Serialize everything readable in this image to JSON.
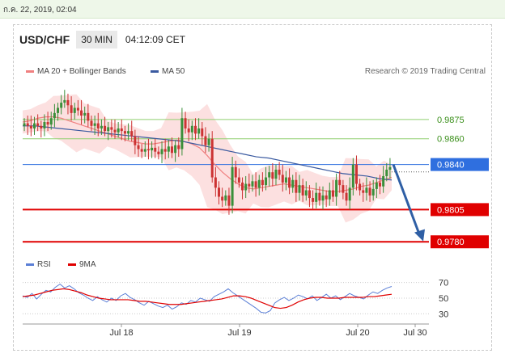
{
  "timestamp": "ก.ค. 22, 2019, 02:04",
  "header": {
    "symbol": "USD/CHF",
    "timeframe": "30 MIN",
    "clock": "04:12:09 CET"
  },
  "legend": {
    "ma20_label": "MA 20 + Bollinger Bands",
    "ma50_label": "MA 50",
    "research": "Research © 2019 Trading Central",
    "rsi_label": "RSI",
    "rsi_ma_label": "9MA"
  },
  "colors": {
    "up": "#3a8f3a",
    "down": "#cc3333",
    "ma20": "#f08080",
    "ma50": "#3a5aa0",
    "band": "#fbd6d6",
    "support": "#e00000",
    "resistance": "#8fcf6f",
    "pivot": "#2f6fdf",
    "arrow": "#2f5fa5"
  },
  "chart_data": {
    "type": "candlestick",
    "y_unit": "USD/CHF",
    "ylim": [
      0.9772,
      0.9905
    ],
    "x_ticks": [
      "Jul 18",
      "Jul 19",
      "Jul 20",
      "Jul 30"
    ],
    "levels": [
      {
        "label": "0.9875",
        "value": 0.9875,
        "kind": "resistance"
      },
      {
        "label": "0.9860",
        "value": 0.986,
        "kind": "resistance"
      },
      {
        "label": "0.9840",
        "value": 0.984,
        "kind": "pivot"
      },
      {
        "label": "0.9805",
        "value": 0.9805,
        "kind": "support"
      },
      {
        "label": "0.9780",
        "value": 0.978,
        "kind": "support"
      }
    ],
    "close": [
      0.9872,
      0.987,
      0.9868,
      0.9872,
      0.987,
      0.9868,
      0.9873,
      0.9871,
      0.9876,
      0.988,
      0.9884,
      0.9888,
      0.989,
      0.9886,
      0.988,
      0.9884,
      0.9882,
      0.9878,
      0.988,
      0.9874,
      0.987,
      0.9872,
      0.9868,
      0.987,
      0.9866,
      0.9869,
      0.9867,
      0.9865,
      0.9868,
      0.9866,
      0.9864,
      0.9866,
      0.9862,
      0.9855,
      0.9852,
      0.985,
      0.9852,
      0.9851,
      0.9853,
      0.985,
      0.9848,
      0.9852,
      0.985,
      0.9854,
      0.9849,
      0.9855,
      0.9852,
      0.9876,
      0.9868,
      0.9865,
      0.987,
      0.9864,
      0.9868,
      0.9862,
      0.9855,
      0.986,
      0.983,
      0.9822,
      0.9815,
      0.9812,
      0.9816,
      0.9808,
      0.9838,
      0.983,
      0.9826,
      0.982,
      0.9825,
      0.9823,
      0.9827,
      0.9822,
      0.9828,
      0.9824,
      0.983,
      0.9834,
      0.9829,
      0.9836,
      0.9832,
      0.9826,
      0.983,
      0.9822,
      0.9828,
      0.9818,
      0.9824,
      0.9816,
      0.982,
      0.9814,
      0.9811,
      0.9818,
      0.9812,
      0.9816,
      0.9813,
      0.982,
      0.9815,
      0.9828,
      0.9824,
      0.9818,
      0.9812,
      0.9822,
      0.984,
      0.9825,
      0.982,
      0.9818,
      0.9822,
      0.9816,
      0.9821,
      0.9826,
      0.9823,
      0.9831,
      0.9836,
      0.9838
    ],
    "ma20": [
      0.9873,
      0.9874,
      0.9876,
      0.9877,
      0.9877,
      0.9876,
      0.9874,
      0.9872,
      0.987,
      0.9868,
      0.9866,
      0.9864,
      0.9862,
      0.986,
      0.9858,
      0.9857,
      0.9856,
      0.9856,
      0.9857,
      0.9858,
      0.9859,
      0.9858,
      0.9856,
      0.9853,
      0.9847,
      0.984,
      0.9834,
      0.9829,
      0.9825,
      0.9822,
      0.9821,
      0.9822,
      0.9823,
      0.9824,
      0.9825,
      0.9824,
      0.9823,
      0.9822,
      0.9821,
      0.982,
      0.9819,
      0.9819,
      0.982,
      0.9821,
      0.9823,
      0.9824,
      0.9826,
      0.9828,
      0.983
    ],
    "ma50": [
      0.987,
      0.987,
      0.9869,
      0.9868,
      0.9867,
      0.9866,
      0.9865,
      0.9864,
      0.9863,
      0.9862,
      0.9861,
      0.986,
      0.9859,
      0.9858,
      0.9856,
      0.9854,
      0.9852,
      0.985,
      0.9848,
      0.9846,
      0.9845,
      0.9843,
      0.9841,
      0.9839,
      0.9837,
      0.9835,
      0.9833,
      0.9832,
      0.9831,
      0.9829,
      0.9828
    ],
    "rsi": {
      "ylim": [
        20,
        80
      ],
      "ticks": [
        "70",
        "50",
        "30"
      ],
      "rsi": [
        53,
        51,
        56,
        49,
        55,
        60,
        58,
        64,
        68,
        63,
        66,
        62,
        57,
        54,
        50,
        47,
        52,
        48,
        45,
        50,
        47,
        53,
        56,
        51,
        48,
        44,
        41,
        46,
        43,
        40,
        38,
        41,
        36,
        39,
        44,
        42,
        47,
        45,
        50,
        48,
        46,
        52,
        55,
        58,
        62,
        57,
        53,
        49,
        45,
        41,
        37,
        32,
        31,
        34,
        44,
        48,
        51,
        47,
        50,
        54,
        52,
        49,
        53,
        47,
        51,
        55,
        50,
        53,
        48,
        52,
        56,
        53,
        51,
        49,
        54,
        58,
        56,
        60,
        63,
        65
      ],
      "ma9": [
        52,
        53,
        54,
        56,
        58,
        60,
        61,
        62,
        61,
        59,
        57,
        54,
        52,
        50,
        49,
        48,
        48,
        48,
        48,
        47,
        46,
        46,
        45,
        44,
        43,
        42,
        42,
        42,
        43,
        44,
        45,
        46,
        47,
        48,
        49,
        51,
        53,
        53,
        52,
        50,
        47,
        44,
        41,
        38,
        37,
        38,
        41,
        45,
        48,
        50,
        51,
        51,
        50,
        50,
        50,
        51,
        51,
        51,
        51,
        52,
        52,
        53,
        54,
        55
      ]
    }
  }
}
